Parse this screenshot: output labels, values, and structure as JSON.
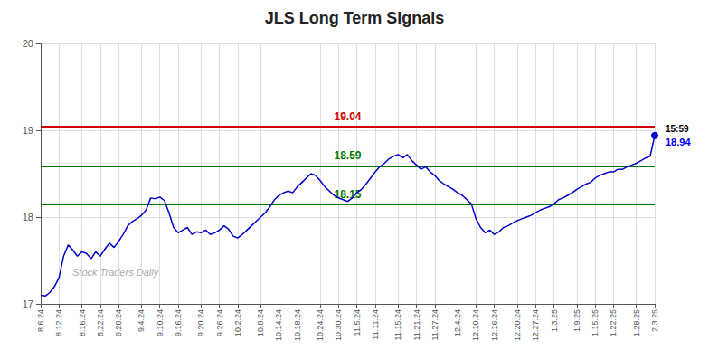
{
  "chart_data": {
    "type": "line",
    "title": "JLS Long Term Signals",
    "color": "#0000cc",
    "grid": true,
    "ylim": [
      17,
      20
    ],
    "yticks": [
      17,
      18,
      19,
      20
    ],
    "categories": [
      "8.6.24",
      null,
      null,
      null,
      "8.12.24",
      null,
      null,
      null,
      null,
      "8.16.24",
      null,
      null,
      null,
      "8.22.24",
      null,
      null,
      null,
      "8.28.24",
      null,
      null,
      null,
      null,
      "9.4.24",
      null,
      null,
      null,
      "9.10.24",
      null,
      null,
      null,
      "9.16.24",
      null,
      null,
      null,
      null,
      "9.20.24",
      null,
      null,
      null,
      "9.26.24",
      null,
      null,
      null,
      "10.2.24",
      null,
      null,
      null,
      null,
      "10.8.24",
      null,
      null,
      null,
      "10.14.24",
      null,
      null,
      null,
      "10.18.24",
      null,
      null,
      null,
      null,
      "10.24.24",
      null,
      null,
      null,
      "10.30.24",
      null,
      null,
      null,
      "11.5.24",
      null,
      null,
      null,
      "11.11.24",
      null,
      null,
      null,
      null,
      "11.15.24",
      null,
      null,
      null,
      "11.21.24",
      null,
      null,
      null,
      "11.27.24",
      null,
      null,
      null,
      null,
      "12.4.24",
      null,
      null,
      null,
      "12.10.24",
      null,
      null,
      null,
      "12.16.24",
      null,
      null,
      null,
      null,
      "12.20.24",
      null,
      null,
      null,
      "12.27.24",
      null,
      null,
      null,
      "1.3.25",
      null,
      null,
      null,
      null,
      "1.9.25",
      null,
      null,
      null,
      "1.15.25",
      null,
      null,
      null,
      "1.22.25",
      null,
      null,
      null,
      null,
      "1.28.25",
      null,
      null,
      null,
      "2.3.25"
    ],
    "values": [
      17.1,
      17.09,
      17.13,
      17.2,
      17.3,
      17.55,
      17.68,
      17.62,
      17.55,
      17.6,
      17.58,
      17.52,
      17.6,
      17.55,
      17.63,
      17.7,
      17.65,
      17.72,
      17.8,
      17.9,
      17.95,
      17.98,
      18.02,
      18.08,
      18.22,
      18.21,
      18.23,
      18.19,
      18.05,
      17.88,
      17.82,
      17.85,
      17.88,
      17.8,
      17.83,
      17.82,
      17.85,
      17.8,
      17.82,
      17.85,
      17.9,
      17.86,
      17.78,
      17.76,
      17.8,
      17.85,
      17.9,
      17.95,
      18.0,
      18.05,
      18.12,
      18.2,
      18.25,
      18.28,
      18.3,
      18.28,
      18.35,
      18.4,
      18.45,
      18.5,
      18.48,
      18.42,
      18.35,
      18.3,
      18.25,
      18.22,
      18.2,
      18.18,
      18.22,
      18.28,
      18.32,
      18.38,
      18.45,
      18.52,
      18.58,
      18.62,
      18.67,
      18.7,
      18.72,
      18.68,
      18.72,
      18.65,
      18.6,
      18.55,
      18.58,
      18.52,
      18.48,
      18.42,
      18.38,
      18.35,
      18.32,
      18.28,
      18.25,
      18.2,
      18.15,
      17.98,
      17.88,
      17.82,
      17.85,
      17.8,
      17.83,
      17.88,
      17.9,
      17.93,
      17.96,
      17.98,
      18.0,
      18.02,
      18.05,
      18.08,
      18.1,
      18.12,
      18.15,
      18.2,
      18.22,
      18.25,
      18.28,
      18.32,
      18.35,
      18.38,
      18.4,
      18.45,
      18.48,
      18.5,
      18.52,
      18.52,
      18.55,
      18.55,
      18.58,
      18.6,
      18.62,
      18.65,
      18.68,
      18.7,
      18.94
    ],
    "hlines": [
      {
        "value": 19.04,
        "label": "19.04",
        "color": "#cc0000"
      },
      {
        "value": 18.59,
        "label": "18.59",
        "color": "#007700"
      },
      {
        "value": 18.15,
        "label": "18.15",
        "color": "#007700"
      }
    ],
    "annotations": [
      {
        "text": "15:59"
      },
      {
        "text": "18.94",
        "color": "#0000ff"
      }
    ],
    "watermark": "Stock Traders Daily"
  }
}
